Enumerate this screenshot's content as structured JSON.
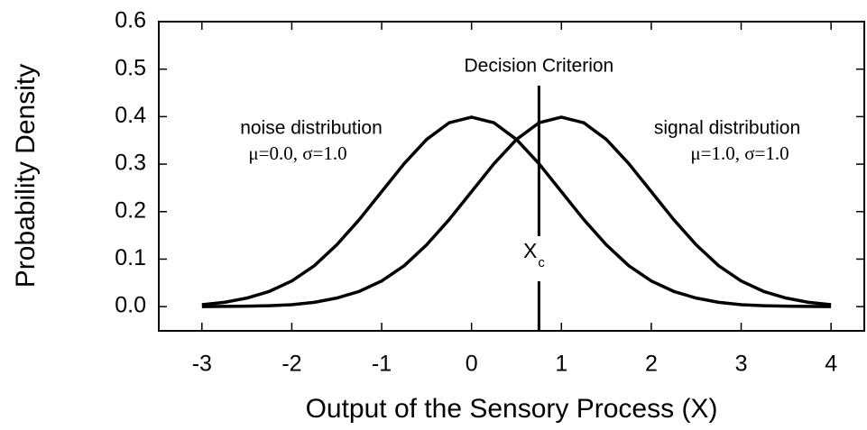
{
  "chart_data": {
    "type": "line",
    "xlabel": "Output of the Sensory Process (X)",
    "ylabel": "Probability Density",
    "x": [
      -3,
      -2.75,
      -2.5,
      -2.25,
      -2,
      -1.75,
      -1.5,
      -1.25,
      -1,
      -0.75,
      -0.5,
      -0.25,
      0,
      0.25,
      0.5,
      0.75,
      1,
      1.25,
      1.5,
      1.75,
      2,
      2.25,
      2.5,
      2.75,
      3,
      3.25,
      3.5,
      3.75,
      4
    ],
    "series": [
      {
        "name": "noise distribution",
        "params": "μ=0.0, σ=1.0",
        "color": "#000000",
        "values": [
          0.004,
          0.009,
          0.018,
          0.032,
          0.054,
          0.086,
          0.13,
          0.183,
          0.242,
          0.301,
          0.352,
          0.387,
          0.399,
          0.387,
          0.352,
          0.301,
          0.242,
          0.183,
          0.13,
          0.086,
          0.054,
          0.032,
          0.018,
          0.009,
          0.004,
          0.002,
          0.001,
          0.0004,
          0.0001
        ]
      },
      {
        "name": "signal distribution",
        "params": "μ=1.0, σ=1.0",
        "color": "#000000",
        "values": [
          0.0001,
          0.0004,
          0.001,
          0.002,
          0.004,
          0.009,
          0.018,
          0.032,
          0.054,
          0.086,
          0.13,
          0.183,
          0.242,
          0.301,
          0.352,
          0.387,
          0.399,
          0.387,
          0.352,
          0.301,
          0.242,
          0.183,
          0.13,
          0.086,
          0.054,
          0.032,
          0.018,
          0.009,
          0.004
        ]
      }
    ],
    "criterion_title": "Decision Criterion",
    "criterion_x": 0.75,
    "criterion_label": "X",
    "criterion_subscript": "c",
    "xlim": [
      -3.48,
      4.37
    ],
    "ylim": [
      -0.051,
      0.6
    ],
    "xticks": [
      -3,
      -2,
      -1,
      0,
      1,
      2,
      3,
      4
    ],
    "yticks": [
      {
        "value": 0,
        "label": "0.0"
      },
      0.1,
      0.2,
      0.3,
      0.4,
      0.5,
      0.6
    ]
  }
}
